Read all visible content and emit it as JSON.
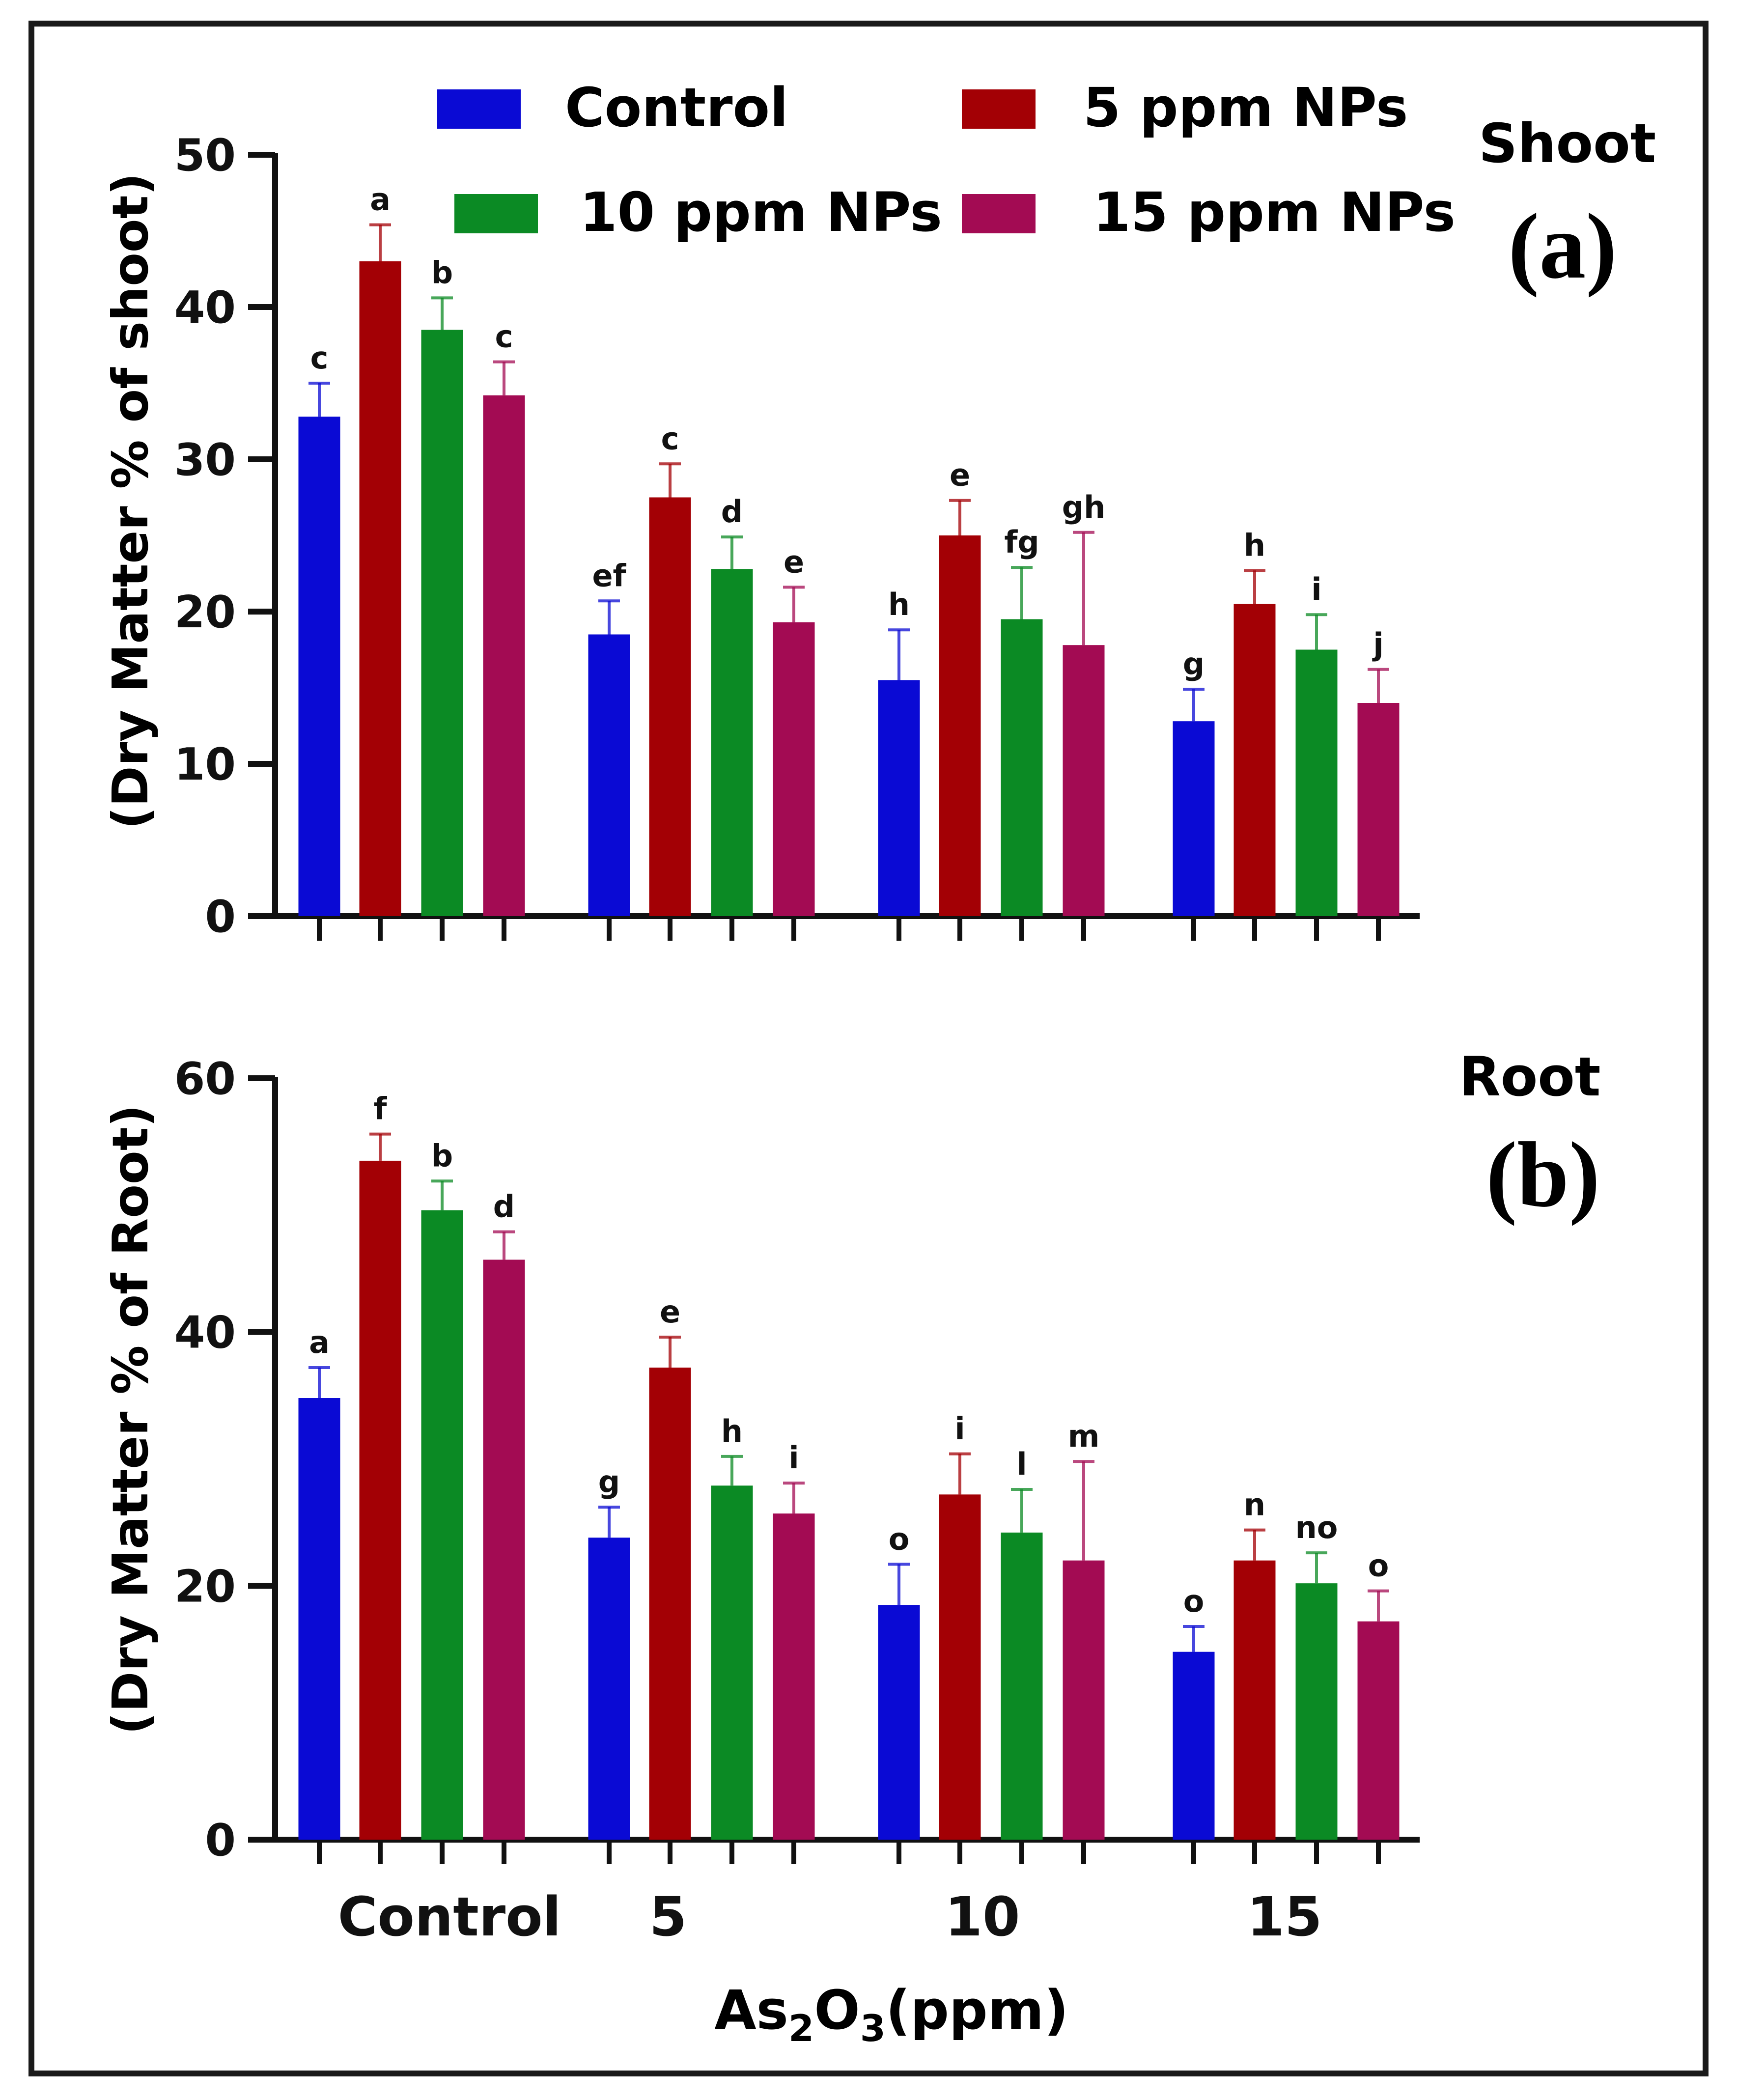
{
  "legend": {
    "items": [
      {
        "label": "Control",
        "color": "#0a0ad4"
      },
      {
        "label": "5 ppm NPs",
        "color": "#a30005"
      },
      {
        "label": "10 ppm NPs",
        "color": "#0b8a24"
      },
      {
        "label": "15 ppm NPs",
        "color": "#a30b53"
      }
    ]
  },
  "x_axis": {
    "title_main": "As",
    "title_sub1": "2",
    "title_mid": "O",
    "title_sub2": "3",
    "title_end": "(ppm)"
  },
  "chart_data": [
    {
      "type": "bar",
      "panel_label": "(a)",
      "corner_label": "Shoot",
      "ylabel": "(Dry Matter % of shoot)",
      "ylim": [
        0,
        50
      ],
      "yticks": [
        0,
        10,
        20,
        30,
        40,
        50
      ],
      "categories": [
        "Control",
        "5",
        "10",
        "15"
      ],
      "series": [
        {
          "name": "Control",
          "values": [
            32.8,
            18.5,
            15.5,
            12.8
          ],
          "errors": [
            2.2,
            2.2,
            3.3,
            2.1
          ],
          "letters": [
            "c",
            "ef",
            "h",
            "g"
          ]
        },
        {
          "name": "5 ppm NPs",
          "values": [
            43.0,
            27.5,
            25.0,
            20.5
          ],
          "errors": [
            2.4,
            2.2,
            2.3,
            2.2
          ],
          "letters": [
            "a",
            "c",
            "e",
            "h"
          ]
        },
        {
          "name": "10 ppm NPs",
          "values": [
            38.5,
            22.8,
            19.5,
            17.5
          ],
          "errors": [
            2.1,
            2.1,
            3.4,
            2.3
          ],
          "letters": [
            "b",
            "d",
            "fg",
            "i"
          ]
        },
        {
          "name": "15 ppm NPs",
          "values": [
            34.2,
            19.3,
            17.8,
            14.0
          ],
          "errors": [
            2.2,
            2.3,
            7.4,
            2.2
          ],
          "letters": [
            "c",
            "e",
            "gh",
            "j"
          ]
        }
      ]
    },
    {
      "type": "bar",
      "panel_label": "(b)",
      "corner_label": "Root",
      "ylabel": "(Dry Matter % of Root)",
      "ylim": [
        0,
        60
      ],
      "yticks": [
        0,
        20,
        40,
        60
      ],
      "categories": [
        "Control",
        "5",
        "10",
        "15"
      ],
      "series": [
        {
          "name": "Control",
          "values": [
            34.8,
            23.8,
            18.5,
            14.8
          ],
          "errors": [
            2.4,
            2.4,
            3.2,
            2.0
          ],
          "letters": [
            "a",
            "g",
            "o",
            "o"
          ]
        },
        {
          "name": "5 ppm NPs",
          "values": [
            53.5,
            37.2,
            27.2,
            22.0
          ],
          "errors": [
            2.1,
            2.4,
            3.2,
            2.4
          ],
          "letters": [
            "f",
            "e",
            "i",
            "n"
          ]
        },
        {
          "name": "10 ppm NPs",
          "values": [
            49.6,
            27.9,
            24.2,
            20.2
          ],
          "errors": [
            2.3,
            2.3,
            3.4,
            2.4
          ],
          "letters": [
            "b",
            "h",
            "l",
            "no"
          ]
        },
        {
          "name": "15 ppm NPs",
          "values": [
            45.7,
            25.7,
            22.0,
            17.2
          ],
          "errors": [
            2.2,
            2.4,
            7.8,
            2.4
          ],
          "letters": [
            "d",
            "i",
            "m",
            "o"
          ]
        }
      ]
    }
  ]
}
